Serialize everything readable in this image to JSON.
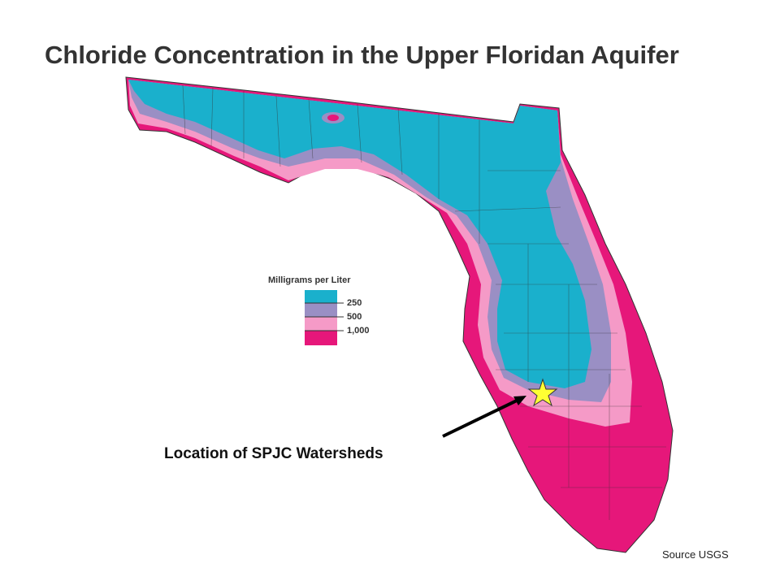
{
  "header": {
    "title": "Chloride Concentration in the Upper Floridan Aquifer"
  },
  "legend": {
    "title": "Milligrams per Liter",
    "labels": [
      "250",
      "500",
      "1,000"
    ]
  },
  "annotation": "Location of SPJC Watersheds",
  "source": "Source USGS"
}
